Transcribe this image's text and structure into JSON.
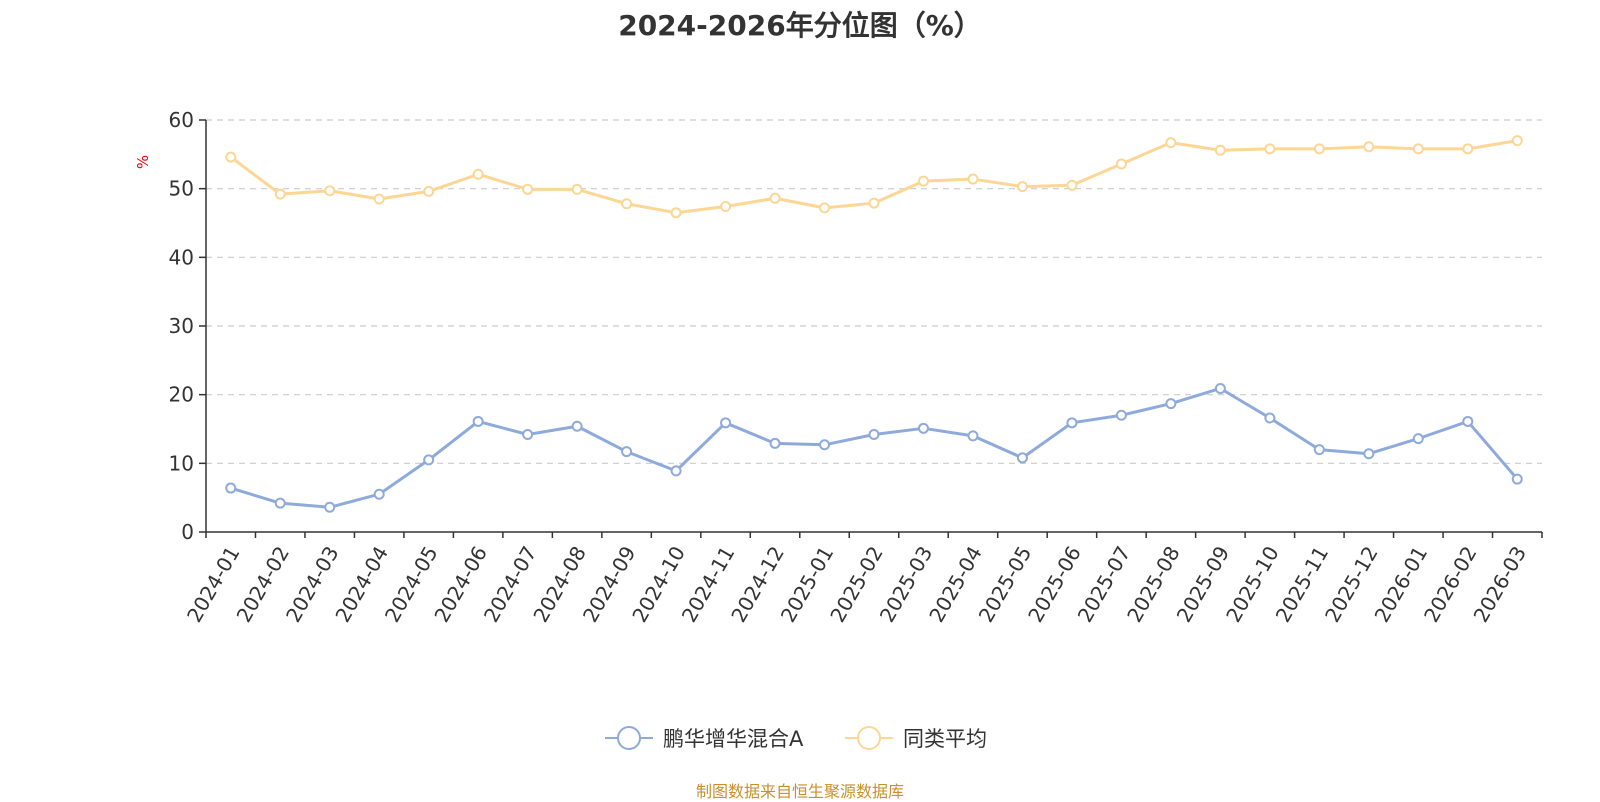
{
  "chart_data": {
    "type": "line",
    "title": "2024-2026年分位图（%）",
    "ylabel": "%",
    "xlabel": "",
    "ylim": [
      0,
      60
    ],
    "yticks": [
      0,
      10,
      20,
      30,
      40,
      50,
      60
    ],
    "grid": true,
    "legend_position": "bottom-center",
    "categories": [
      "2024-01",
      "2024-02",
      "2024-03",
      "2024-04",
      "2024-05",
      "2024-06",
      "2024-07",
      "2024-08",
      "2024-09",
      "2024-10",
      "2024-11",
      "2024-12",
      "2025-01",
      "2025-02",
      "2025-03",
      "2025-04",
      "2025-05",
      "2025-06",
      "2025-07",
      "2025-08",
      "2025-09",
      "2025-10",
      "2025-11",
      "2025-12",
      "2026-01",
      "2026-02",
      "2026-03"
    ],
    "series": [
      {
        "name": "鹏华增华混合A",
        "color": "#8eaadb",
        "values": [
          6.4,
          4.2,
          3.6,
          5.5,
          10.5,
          16.1,
          14.2,
          15.4,
          11.7,
          8.9,
          15.9,
          12.9,
          12.7,
          14.2,
          15.1,
          14.0,
          10.8,
          15.9,
          17.0,
          18.7,
          20.9,
          16.6,
          12.0,
          11.4,
          13.6,
          16.1,
          7.7
        ]
      },
      {
        "name": "同类平均",
        "color": "#fcd695",
        "values": [
          54.6,
          49.2,
          49.7,
          48.5,
          49.6,
          52.1,
          49.9,
          49.9,
          47.8,
          46.5,
          47.4,
          48.6,
          47.2,
          47.9,
          51.1,
          51.4,
          50.3,
          50.5,
          53.6,
          56.7,
          55.6,
          55.8,
          55.8,
          56.1,
          55.8,
          55.8,
          57.0
        ]
      }
    ]
  },
  "source_note": "制图数据来自恒生聚源数据库",
  "colors": {
    "axis": "#333333",
    "grid": "#cccccc",
    "ylabel": "#ff0000",
    "source": "#c8902a"
  }
}
